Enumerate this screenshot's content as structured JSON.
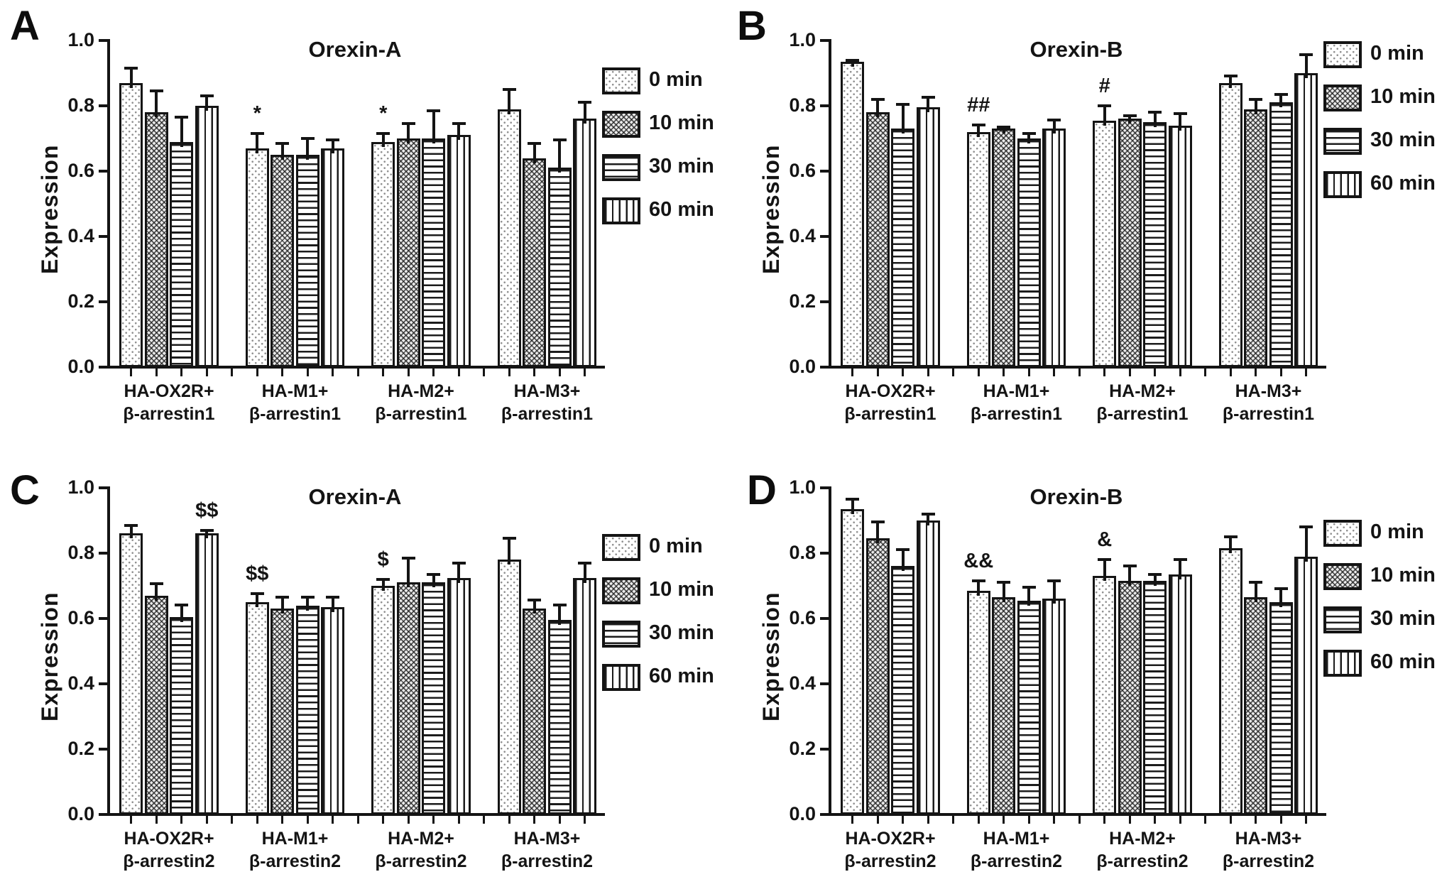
{
  "legend": {
    "items": [
      {
        "label": "0 min",
        "pattern": "dots"
      },
      {
        "label": "10 min",
        "pattern": "crosshatch"
      },
      {
        "label": "30 min",
        "pattern": "hlines"
      },
      {
        "label": "60 min",
        "pattern": "vlines"
      }
    ]
  },
  "chart_data": [
    {
      "panel": "A",
      "type": "bar",
      "title": "Orexin-A",
      "ylabel": "Expression",
      "ylim": [
        0,
        1.0
      ],
      "yticks": [
        "0.0",
        "0.2",
        "0.4",
        "0.6",
        "0.8",
        "1.0"
      ],
      "grid": false,
      "legend_position": "right",
      "categories": [
        [
          "HA-OX2R+",
          "β-arrestin1"
        ],
        [
          "HA-M1+",
          "β-arrestin1"
        ],
        [
          "HA-M2+",
          "β-arrestin1"
        ],
        [
          "HA-M3+",
          "β-arrestin1"
        ]
      ],
      "series": [
        {
          "name": "0 min",
          "values": [
            0.87,
            0.67,
            0.69,
            0.79
          ],
          "errors": [
            0.05,
            0.05,
            0.03,
            0.065
          ]
        },
        {
          "name": "10 min",
          "values": [
            0.78,
            0.65,
            0.7,
            0.64
          ],
          "errors": [
            0.07,
            0.04,
            0.05,
            0.05
          ]
        },
        {
          "name": "30 min",
          "values": [
            0.69,
            0.65,
            0.7,
            0.61
          ],
          "errors": [
            0.08,
            0.055,
            0.09,
            0.09
          ]
        },
        {
          "name": "60 min",
          "values": [
            0.8,
            0.67,
            0.71,
            0.76
          ],
          "errors": [
            0.035,
            0.03,
            0.04,
            0.055
          ]
        }
      ],
      "annotations": [
        {
          "group": 1,
          "series": 0,
          "text": "*"
        },
        {
          "group": 2,
          "series": 0,
          "text": "*"
        }
      ]
    },
    {
      "panel": "B",
      "type": "bar",
      "title": "Orexin-B",
      "ylabel": "Expression",
      "ylim": [
        0,
        1.0
      ],
      "yticks": [
        "0.0",
        "0.2",
        "0.4",
        "0.6",
        "0.8",
        "1.0"
      ],
      "grid": false,
      "legend_position": "right",
      "categories": [
        [
          "HA-OX2R+",
          "β-arrestin1"
        ],
        [
          "HA-M1+",
          "β-arrestin1"
        ],
        [
          "HA-M2+",
          "β-arrestin1"
        ],
        [
          "HA-M3+",
          "β-arrestin1"
        ]
      ],
      "series": [
        {
          "name": "0 min",
          "values": [
            0.935,
            0.72,
            0.755,
            0.87
          ],
          "errors": [
            0.008,
            0.025,
            0.05,
            0.025
          ]
        },
        {
          "name": "10 min",
          "values": [
            0.78,
            0.73,
            0.76,
            0.79
          ],
          "errors": [
            0.045,
            0.01,
            0.015,
            0.035
          ]
        },
        {
          "name": "30 min",
          "values": [
            0.73,
            0.7,
            0.75,
            0.81
          ],
          "errors": [
            0.078,
            0.02,
            0.035,
            0.03
          ]
        },
        {
          "name": "60 min",
          "values": [
            0.795,
            0.73,
            0.74,
            0.9
          ],
          "errors": [
            0.035,
            0.03,
            0.04,
            0.06
          ]
        }
      ],
      "annotations": [
        {
          "group": 1,
          "series": 0,
          "text": "##"
        },
        {
          "group": 2,
          "series": 0,
          "text": "#"
        }
      ]
    },
    {
      "panel": "C",
      "type": "bar",
      "title": "Orexin-A",
      "ylabel": "Expression",
      "ylim": [
        0,
        1.0
      ],
      "yticks": [
        "0.0",
        "0.2",
        "0.4",
        "0.6",
        "0.8",
        "1.0"
      ],
      "grid": false,
      "legend_position": "right",
      "categories": [
        [
          "HA-OX2R+",
          "β-arrestin2"
        ],
        [
          "HA-M1+",
          "β-arrestin2"
        ],
        [
          "HA-M2+",
          "β-arrestin2"
        ],
        [
          "HA-M3+",
          "β-arrestin2"
        ]
      ],
      "series": [
        {
          "name": "0 min",
          "values": [
            0.86,
            0.65,
            0.7,
            0.78
          ],
          "errors": [
            0.03,
            0.03,
            0.025,
            0.07
          ]
        },
        {
          "name": "10 min",
          "values": [
            0.67,
            0.63,
            0.71,
            0.63
          ],
          "errors": [
            0.04,
            0.04,
            0.08,
            0.03
          ]
        },
        {
          "name": "30 min",
          "values": [
            0.605,
            0.64,
            0.71,
            0.595
          ],
          "errors": [
            0.04,
            0.03,
            0.03,
            0.05
          ]
        },
        {
          "name": "60 min",
          "values": [
            0.86,
            0.635,
            0.725,
            0.725
          ],
          "errors": [
            0.015,
            0.035,
            0.05,
            0.05
          ]
        }
      ],
      "annotations": [
        {
          "group": 0,
          "series": 3,
          "text": "$$"
        },
        {
          "group": 1,
          "series": 0,
          "text": "$$"
        },
        {
          "group": 2,
          "series": 0,
          "text": "$"
        }
      ]
    },
    {
      "panel": "D",
      "type": "bar",
      "title": "Orexin-B",
      "ylabel": "Expression",
      "ylim": [
        0,
        1.0
      ],
      "yticks": [
        "0.0",
        "0.2",
        "0.4",
        "0.6",
        "0.8",
        "1.0"
      ],
      "grid": false,
      "legend_position": "right",
      "categories": [
        [
          "HA-OX2R+",
          "β-arrestin2"
        ],
        [
          "HA-M1+",
          "β-arrestin2"
        ],
        [
          "HA-M2+",
          "β-arrestin2"
        ],
        [
          "HA-M3+",
          "β-arrestin2"
        ]
      ],
      "series": [
        {
          "name": "0 min",
          "values": [
            0.935,
            0.685,
            0.73,
            0.815
          ],
          "errors": [
            0.035,
            0.035,
            0.055,
            0.04
          ]
        },
        {
          "name": "10 min",
          "values": [
            0.845,
            0.665,
            0.715,
            0.665
          ],
          "errors": [
            0.055,
            0.05,
            0.05,
            0.05
          ]
        },
        {
          "name": "30 min",
          "values": [
            0.76,
            0.655,
            0.715,
            0.65
          ],
          "errors": [
            0.055,
            0.045,
            0.025,
            0.045
          ]
        },
        {
          "name": "60 min",
          "values": [
            0.9,
            0.66,
            0.735,
            0.79
          ],
          "errors": [
            0.025,
            0.06,
            0.05,
            0.095
          ]
        }
      ],
      "annotations": [
        {
          "group": 1,
          "series": 0,
          "text": "&&"
        },
        {
          "group": 2,
          "series": 0,
          "text": "&"
        }
      ]
    }
  ]
}
